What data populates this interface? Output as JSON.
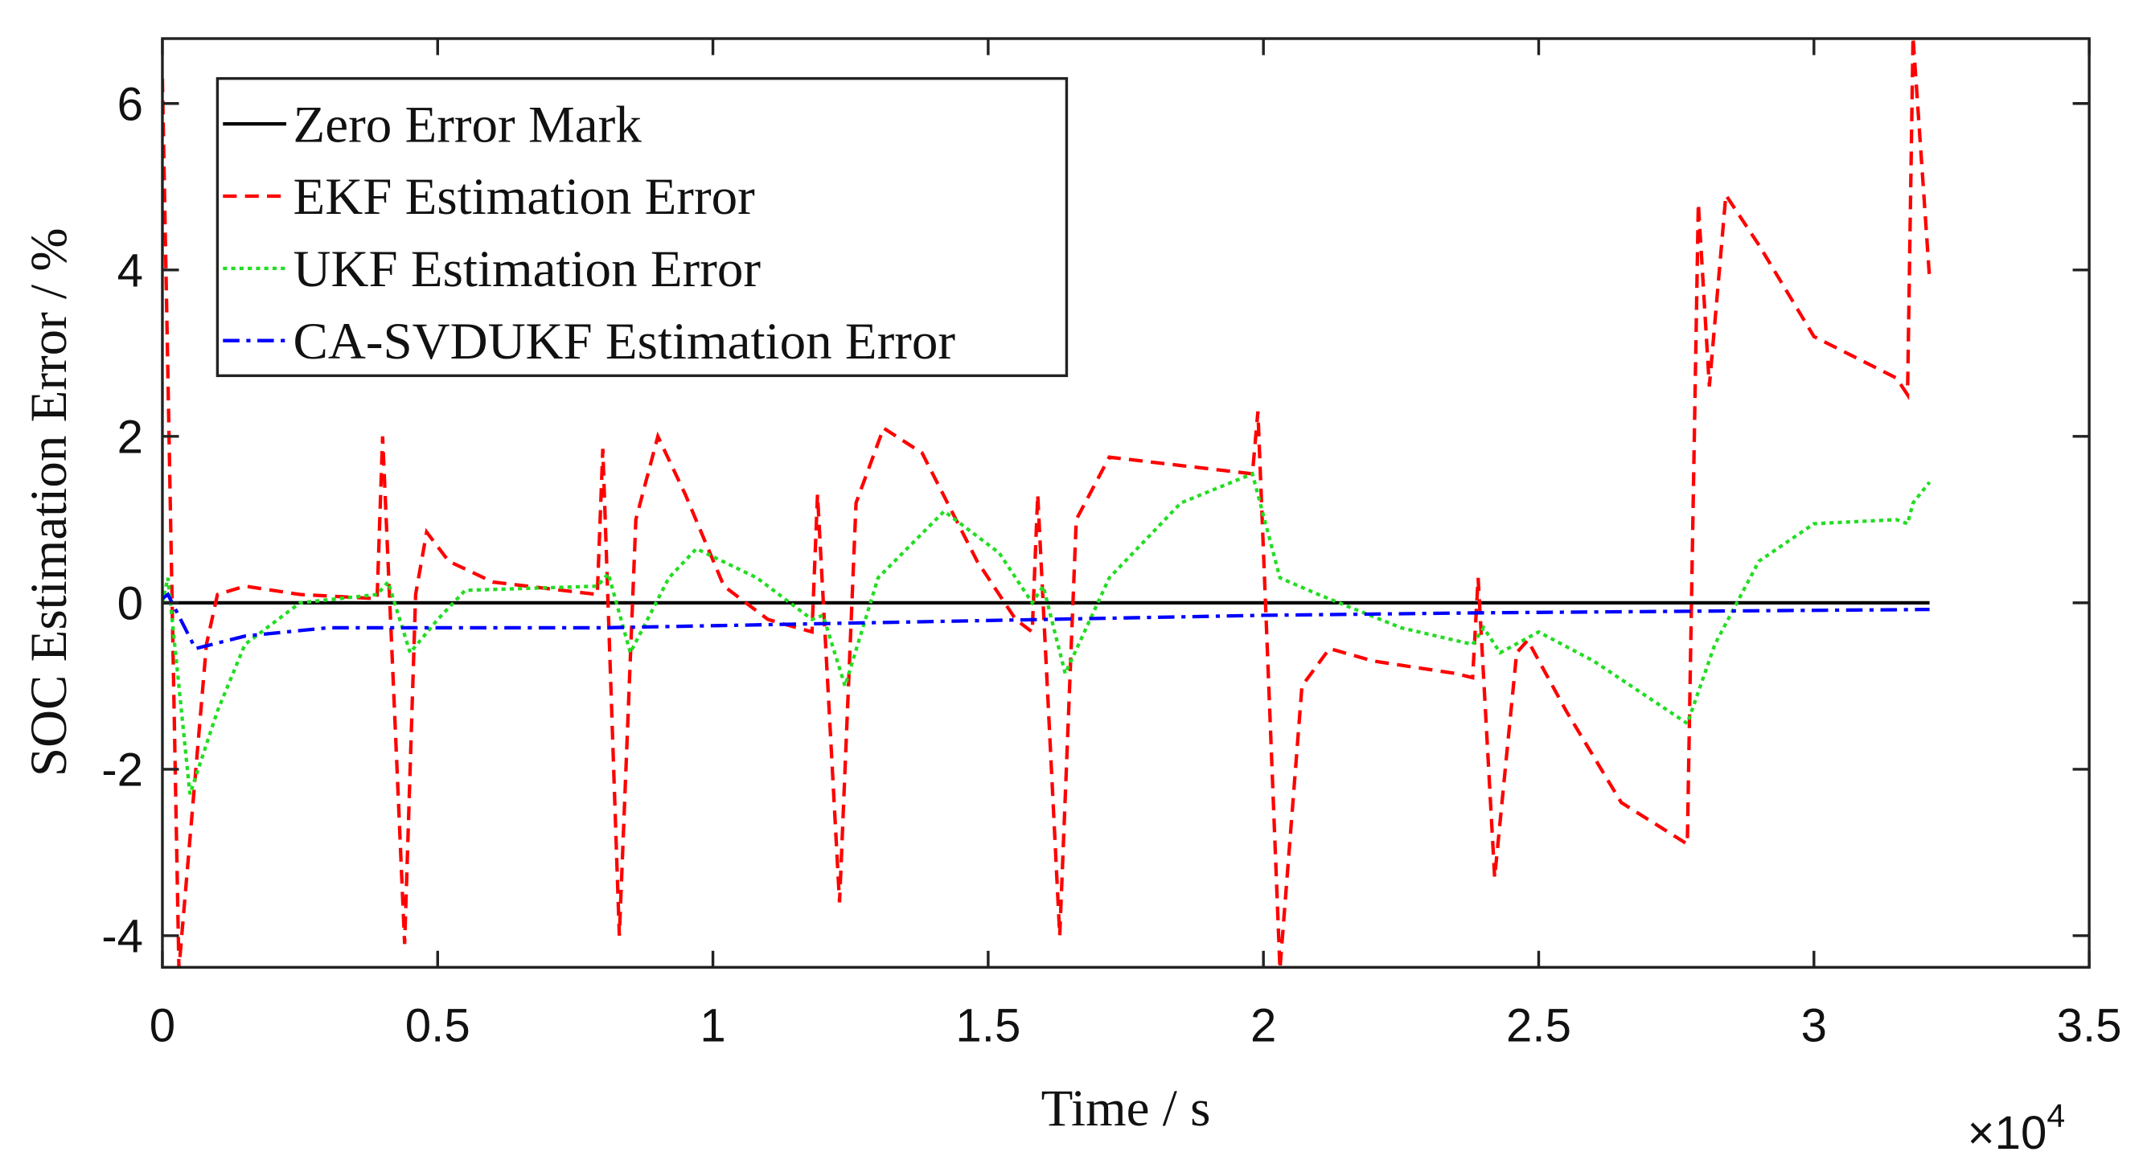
{
  "chart_data": {
    "type": "line",
    "xlabel": "Time / s",
    "ylabel": "SOC Estimation Error / %",
    "x_exponent": {
      "base": "×10",
      "power": "4"
    },
    "xlim": [
      0,
      3.5
    ],
    "xticks": [
      0,
      0.5,
      1,
      1.5,
      2,
      2.5,
      3,
      3.5
    ],
    "ylim": [
      -4.38,
      6.78
    ],
    "yticks": [
      -4,
      -2,
      0,
      2,
      4,
      6
    ],
    "legend": "upper left",
    "series": [
      {
        "name": "Zero Error Mark",
        "color": "#000000",
        "style": "solid",
        "x": [
          0,
          3.21
        ],
        "values": [
          0,
          0
        ]
      },
      {
        "name": "EKF Estimation Error",
        "color": "#ff0000",
        "style": "dashed",
        "x": [
          0,
          0.03,
          0.08,
          0.1,
          0.15,
          0.25,
          0.39,
          0.4,
          0.44,
          0.46,
          0.48,
          0.52,
          0.6,
          0.79,
          0.8,
          0.83,
          0.86,
          0.9,
          0.95,
          1.02,
          1.1,
          1.18,
          1.19,
          1.23,
          1.26,
          1.31,
          1.38,
          1.48,
          1.55,
          1.58,
          1.59,
          1.63,
          1.66,
          1.72,
          1.85,
          1.98,
          1.99,
          2.03,
          2.07,
          2.12,
          2.2,
          2.35,
          2.38,
          2.39,
          2.42,
          2.46,
          2.48,
          2.55,
          2.65,
          2.77,
          2.79,
          2.81,
          2.84,
          2.9,
          3.0,
          3.15,
          3.17,
          3.18,
          3.21
        ],
        "values": [
          6.3,
          -4.4,
          -0.5,
          0.1,
          0.2,
          0.1,
          0.05,
          2.0,
          -4.1,
          0.1,
          0.85,
          0.5,
          0.25,
          0.1,
          1.85,
          -4.0,
          1.0,
          2.0,
          1.3,
          0.2,
          -0.2,
          -0.35,
          1.3,
          -3.6,
          1.2,
          2.1,
          1.8,
          0.5,
          -0.2,
          -0.35,
          1.3,
          -4.0,
          1.0,
          1.75,
          1.65,
          1.55,
          2.3,
          -4.4,
          -1.0,
          -0.55,
          -0.7,
          -0.85,
          -0.9,
          0.3,
          -3.3,
          -0.6,
          -0.45,
          -1.3,
          -2.4,
          -2.9,
          4.8,
          2.6,
          4.9,
          4.3,
          3.2,
          2.7,
          2.5,
          6.8,
          3.9
        ]
      },
      {
        "name": "UKF Estimation Error",
        "color": "#22dd22",
        "style": "dotted",
        "x": [
          0,
          0.01,
          0.05,
          0.1,
          0.15,
          0.25,
          0.39,
          0.41,
          0.45,
          0.5,
          0.55,
          0.79,
          0.81,
          0.85,
          0.92,
          0.97,
          1.08,
          1.18,
          1.2,
          1.24,
          1.3,
          1.42,
          1.52,
          1.58,
          1.6,
          1.64,
          1.72,
          1.85,
          1.98,
          2.03,
          2.1,
          2.25,
          2.38,
          2.4,
          2.43,
          2.5,
          2.6,
          2.77,
          2.82,
          2.9,
          3.0,
          3.15,
          3.17,
          3.18,
          3.21
        ],
        "values": [
          0,
          0.3,
          -2.3,
          -1.3,
          -0.5,
          0,
          0.1,
          0.25,
          -0.6,
          -0.2,
          0.15,
          0.2,
          0.35,
          -0.6,
          0.3,
          0.65,
          0.3,
          -0.2,
          -0.15,
          -1.0,
          0.3,
          1.1,
          0.6,
          0.0,
          0.2,
          -0.85,
          0.3,
          1.2,
          1.55,
          0.3,
          0.1,
          -0.3,
          -0.5,
          -0.3,
          -0.6,
          -0.35,
          -0.7,
          -1.45,
          -0.5,
          0.5,
          0.95,
          1.0,
          0.95,
          1.2,
          1.45
        ]
      },
      {
        "name": "CA-SVDUKF Estimation Error",
        "color": "#0000ff",
        "style": "dashdot",
        "x": [
          0,
          0.01,
          0.06,
          0.15,
          0.3,
          0.8,
          1.2,
          1.6,
          2.0,
          2.4,
          2.8,
          3.21
        ],
        "values": [
          0.05,
          0.1,
          -0.55,
          -0.4,
          -0.3,
          -0.3,
          -0.25,
          -0.2,
          -0.15,
          -0.12,
          -0.1,
          -0.08
        ]
      }
    ]
  }
}
